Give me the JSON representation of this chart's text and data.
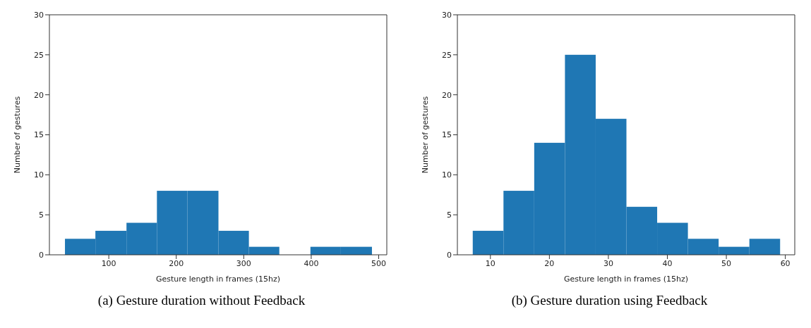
{
  "chart_data": [
    {
      "type": "histogram",
      "bins": [
        35,
        80,
        126,
        171,
        216,
        262,
        307,
        352,
        398,
        443,
        489
      ],
      "values": [
        2,
        3,
        4,
        8,
        8,
        3,
        1,
        0,
        1,
        1
      ],
      "color": "#1f77b4",
      "xlim": [
        12,
        512
      ],
      "xticks": [
        100,
        200,
        300,
        400,
        500
      ],
      "ylim": [
        0,
        30
      ],
      "yticks": [
        0,
        5,
        10,
        15,
        20,
        25,
        30
      ],
      "xlabel": "Gesture length in frames (15hz)",
      "ylabel": "Number of gestures",
      "annotations": [
        "(a) Gesture duration without Feedback"
      ]
    },
    {
      "type": "histogram",
      "bins": [
        7,
        12.2,
        17.4,
        22.6,
        27.8,
        33,
        38.2,
        43.4,
        48.6,
        53.8,
        59
      ],
      "values": [
        3,
        8,
        14,
        25,
        17,
        6,
        4,
        2,
        1,
        2
      ],
      "color": "#1f77b4",
      "xlim": [
        4.4,
        61.6
      ],
      "xticks": [
        10,
        20,
        30,
        40,
        50,
        60
      ],
      "ylim": [
        0,
        30
      ],
      "yticks": [
        0,
        5,
        10,
        15,
        20,
        25,
        30
      ],
      "xlabel": "Gesture length in frames (15hz)",
      "ylabel": "Number of gestures",
      "annotations": [
        "(b) Gesture duration using Feedback"
      ]
    }
  ]
}
